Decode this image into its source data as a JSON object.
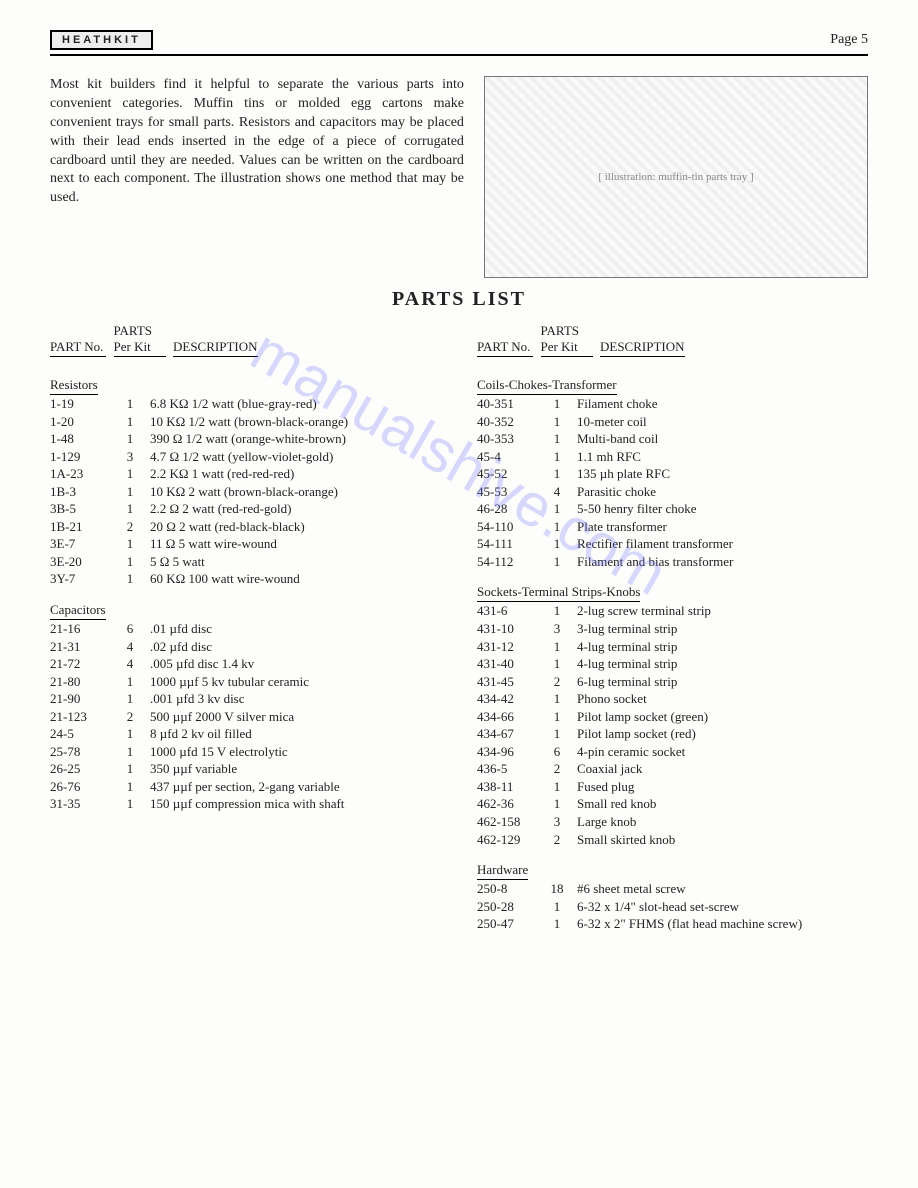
{
  "header": {
    "brand": "HEATHKIT",
    "page": "Page 5"
  },
  "intro": "Most kit builders find it helpful to separate the various parts into convenient categories. Muffin tins or molded egg cartons make convenient trays for small parts. Resistors and capacitors may be placed with their lead ends inserted in the edge of a piece of corrugated cardboard until they are needed. Values can be written on the cardboard next to each component. The illustration shows one method that may be used.",
  "illustration_caption": "[ illustration: muffin-tin parts tray ]",
  "section_title": "PARTS LIST",
  "col_headers": {
    "part": "PART No.",
    "qty": "PARTS Per Kit",
    "desc": "DESCRIPTION"
  },
  "left_groups": [
    {
      "title": "Resistors",
      "rows": [
        {
          "p": "1-19",
          "q": "1",
          "d": "6.8 KΩ 1/2 watt (blue-gray-red)"
        },
        {
          "p": "1-20",
          "q": "1",
          "d": "10 KΩ 1/2 watt (brown-black-orange)"
        },
        {
          "p": "1-48",
          "q": "1",
          "d": "390 Ω 1/2 watt (orange-white-brown)"
        },
        {
          "p": "1-129",
          "q": "3",
          "d": "4.7 Ω 1/2 watt (yellow-violet-gold)"
        },
        {
          "p": "1A-23",
          "q": "1",
          "d": "2.2 KΩ 1 watt (red-red-red)"
        },
        {
          "p": "1B-3",
          "q": "1",
          "d": "10 KΩ 2 watt (brown-black-orange)"
        },
        {
          "p": "3B-5",
          "q": "1",
          "d": "2.2 Ω 2 watt (red-red-gold)"
        },
        {
          "p": "1B-21",
          "q": "2",
          "d": "20 Ω 2 watt (red-black-black)"
        },
        {
          "p": "3E-7",
          "q": "1",
          "d": "11 Ω 5 watt wire-wound"
        },
        {
          "p": "3E-20",
          "q": "1",
          "d": "5 Ω 5 watt"
        },
        {
          "p": "3Y-7",
          "q": "1",
          "d": "60 KΩ 100 watt wire-wound"
        }
      ]
    },
    {
      "title": "Capacitors",
      "rows": [
        {
          "p": "21-16",
          "q": "6",
          "d": ".01 µfd disc"
        },
        {
          "p": "21-31",
          "q": "4",
          "d": ".02 µfd disc"
        },
        {
          "p": "21-72",
          "q": "4",
          "d": ".005 µfd disc 1.4 kv"
        },
        {
          "p": "21-80",
          "q": "1",
          "d": "1000 µµf 5 kv tubular ceramic"
        },
        {
          "p": "21-90",
          "q": "1",
          "d": ".001 µfd 3 kv disc"
        },
        {
          "p": "21-123",
          "q": "2",
          "d": "500 µµf 2000 V silver mica"
        },
        {
          "p": "24-5",
          "q": "1",
          "d": "8 µfd 2 kv oil filled"
        },
        {
          "p": "25-78",
          "q": "1",
          "d": "1000 µfd 15 V electrolytic"
        },
        {
          "p": "26-25",
          "q": "1",
          "d": "350 µµf variable"
        },
        {
          "p": "26-76",
          "q": "1",
          "d": "437 µµf per section, 2-gang variable"
        },
        {
          "p": "31-35",
          "q": "1",
          "d": "150 µµf compression mica with shaft"
        }
      ]
    }
  ],
  "right_groups": [
    {
      "title": "Coils-Chokes-Transformer",
      "rows": [
        {
          "p": "40-351",
          "q": "1",
          "d": "Filament choke"
        },
        {
          "p": "40-352",
          "q": "1",
          "d": "10-meter coil"
        },
        {
          "p": "40-353",
          "q": "1",
          "d": "Multi-band coil"
        },
        {
          "p": "45-4",
          "q": "1",
          "d": "1.1 mh RFC"
        },
        {
          "p": "45-52",
          "q": "1",
          "d": "135 µh plate RFC"
        },
        {
          "p": "45-53",
          "q": "4",
          "d": "Parasitic choke"
        },
        {
          "p": "46-28",
          "q": "1",
          "d": "5-50 henry filter choke"
        },
        {
          "p": "54-110",
          "q": "1",
          "d": "Plate transformer"
        },
        {
          "p": "54-111",
          "q": "1",
          "d": "Rectifier filament transformer"
        },
        {
          "p": "54-112",
          "q": "1",
          "d": "Filament and bias transformer"
        }
      ]
    },
    {
      "title": "Sockets-Terminal Strips-Knobs",
      "rows": [
        {
          "p": "431-6",
          "q": "1",
          "d": "2-lug screw terminal strip"
        },
        {
          "p": "431-10",
          "q": "3",
          "d": "3-lug terminal strip"
        },
        {
          "p": "431-12",
          "q": "1",
          "d": "4-lug terminal strip"
        },
        {
          "p": "431-40",
          "q": "1",
          "d": "4-lug terminal strip"
        },
        {
          "p": "431-45",
          "q": "2",
          "d": "6-lug terminal strip"
        },
        {
          "p": "434-42",
          "q": "1",
          "d": "Phono socket"
        },
        {
          "p": "434-66",
          "q": "1",
          "d": "Pilot lamp socket (green)"
        },
        {
          "p": "434-67",
          "q": "1",
          "d": "Pilot lamp socket (red)"
        },
        {
          "p": "434-96",
          "q": "6",
          "d": "4-pin ceramic socket"
        },
        {
          "p": "436-5",
          "q": "2",
          "d": "Coaxial jack"
        },
        {
          "p": "438-11",
          "q": "1",
          "d": "Fused plug"
        },
        {
          "p": "462-36",
          "q": "1",
          "d": "Small red knob"
        },
        {
          "p": "462-158",
          "q": "3",
          "d": "Large knob"
        },
        {
          "p": "462-129",
          "q": "2",
          "d": "Small skirted knob"
        }
      ]
    },
    {
      "title": "Hardware",
      "rows": [
        {
          "p": "250-8",
          "q": "18",
          "d": "#6 sheet metal screw"
        },
        {
          "p": "250-28",
          "q": "1",
          "d": "6-32 x 1/4\" slot-head set-screw"
        },
        {
          "p": "250-47",
          "q": "1",
          "d": "6-32 x 2\" FHMS (flat head machine screw)"
        }
      ]
    }
  ],
  "watermark": "manualshive.com"
}
